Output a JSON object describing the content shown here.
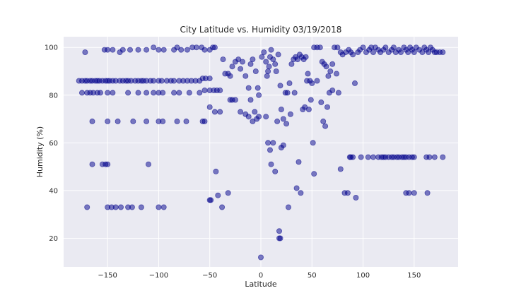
{
  "chart_data": {
    "type": "scatter",
    "title": "City Latitude vs. Humidity 03/19/2018",
    "xlabel": "Latitude",
    "ylabel": "Humidity (%)",
    "xlim": [
      -193,
      193
    ],
    "ylim": [
      8,
      104.5
    ],
    "xticks": [
      -150,
      -100,
      -50,
      0,
      50,
      100,
      150
    ],
    "yticks": [
      20,
      40,
      60,
      80,
      100
    ],
    "grid": true,
    "marker_color": "#00008b",
    "background_color": "#eaeaf2",
    "series": [
      {
        "points": [
          [
            -172,
            98
          ],
          [
            -153,
            99
          ],
          [
            -150,
            99
          ],
          [
            -145,
            99
          ],
          [
            -138,
            98
          ],
          [
            -135,
            99
          ],
          [
            -128,
            99
          ],
          [
            -120,
            99
          ],
          [
            -112,
            99
          ],
          [
            -105,
            100
          ],
          [
            -100,
            99
          ],
          [
            -95,
            99
          ],
          [
            -85,
            99
          ],
          [
            -82,
            100
          ],
          [
            -78,
            99
          ],
          [
            -72,
            99
          ],
          [
            -67,
            100
          ],
          [
            -63,
            100
          ],
          [
            -58,
            100
          ],
          [
            -55,
            99
          ],
          [
            -50,
            99
          ],
          [
            -47,
            100
          ],
          [
            -45,
            100
          ],
          [
            -178,
            86
          ],
          [
            -175,
            86
          ],
          [
            -172,
            86
          ],
          [
            -170,
            86
          ],
          [
            -167,
            86
          ],
          [
            -165,
            86
          ],
          [
            -162,
            86
          ],
          [
            -160,
            86
          ],
          [
            -158,
            86
          ],
          [
            -155,
            86
          ],
          [
            -152,
            86
          ],
          [
            -150,
            86
          ],
          [
            -148,
            86
          ],
          [
            -145,
            86
          ],
          [
            -142,
            86
          ],
          [
            -138,
            86
          ],
          [
            -135,
            86
          ],
          [
            -132,
            86
          ],
          [
            -130,
            86
          ],
          [
            -127,
            86
          ],
          [
            -123,
            86
          ],
          [
            -120,
            86
          ],
          [
            -117,
            86
          ],
          [
            -115,
            86
          ],
          [
            -112,
            86
          ],
          [
            -108,
            86
          ],
          [
            -105,
            86
          ],
          [
            -100,
            86
          ],
          [
            -97,
            86
          ],
          [
            -92,
            86
          ],
          [
            -88,
            86
          ],
          [
            -85,
            86
          ],
          [
            -80,
            86
          ],
          [
            -76,
            86
          ],
          [
            -72,
            86
          ],
          [
            -68,
            86
          ],
          [
            -64,
            86
          ],
          [
            -60,
            86
          ],
          [
            -57,
            87
          ],
          [
            -54,
            87
          ],
          [
            -50,
            87
          ],
          [
            -175,
            81
          ],
          [
            -170,
            81
          ],
          [
            -167,
            81
          ],
          [
            -164,
            81
          ],
          [
            -160,
            81
          ],
          [
            -157,
            81
          ],
          [
            -150,
            81
          ],
          [
            -145,
            81
          ],
          [
            -130,
            81
          ],
          [
            -120,
            81
          ],
          [
            -112,
            81
          ],
          [
            -105,
            81
          ],
          [
            -100,
            81
          ],
          [
            -96,
            81
          ],
          [
            -85,
            81
          ],
          [
            -80,
            81
          ],
          [
            -70,
            81
          ],
          [
            -60,
            81
          ],
          [
            -55,
            82
          ],
          [
            -50,
            82
          ],
          [
            -46,
            82
          ],
          [
            -43,
            82
          ],
          [
            -40,
            82
          ],
          [
            -165,
            69
          ],
          [
            -150,
            69
          ],
          [
            -140,
            69
          ],
          [
            -125,
            69
          ],
          [
            -112,
            69
          ],
          [
            -100,
            69
          ],
          [
            -96,
            69
          ],
          [
            -82,
            69
          ],
          [
            -73,
            69
          ],
          [
            -57,
            69
          ],
          [
            -55,
            69
          ],
          [
            -165,
            51
          ],
          [
            -155,
            51
          ],
          [
            -152,
            51
          ],
          [
            -150,
            51
          ],
          [
            -110,
            51
          ],
          [
            -170,
            33
          ],
          [
            -150,
            33
          ],
          [
            -146,
            33
          ],
          [
            -142,
            33
          ],
          [
            -137,
            33
          ],
          [
            -130,
            33
          ],
          [
            -126,
            33
          ],
          [
            -117,
            33
          ],
          [
            -100,
            33
          ],
          [
            -95,
            33
          ],
          [
            -50,
            36
          ],
          [
            -49,
            36
          ],
          [
            -42,
            38
          ],
          [
            -38,
            33
          ],
          [
            -32,
            39
          ],
          [
            -44,
            48
          ],
          [
            -50,
            75
          ],
          [
            -45,
            73
          ],
          [
            -40,
            73
          ],
          [
            -37,
            95
          ],
          [
            -35,
            89
          ],
          [
            -32,
            89
          ],
          [
            -30,
            88
          ],
          [
            -28,
            92
          ],
          [
            -25,
            94
          ],
          [
            -22,
            95
          ],
          [
            -20,
            91
          ],
          [
            -18,
            94
          ],
          [
            -15,
            88
          ],
          [
            -12,
            83
          ],
          [
            -10,
            93
          ],
          [
            -8,
            95
          ],
          [
            -5,
            90
          ],
          [
            -3,
            83
          ],
          [
            -2,
            80
          ],
          [
            -15,
            72
          ],
          [
            -12,
            71
          ],
          [
            -10,
            78
          ],
          [
            -8,
            69
          ],
          [
            -6,
            73
          ],
          [
            -4,
            70
          ],
          [
            -2,
            71
          ],
          [
            -30,
            78
          ],
          [
            -28,
            78
          ],
          [
            -25,
            78
          ],
          [
            -20,
            73
          ],
          [
            0,
            12
          ],
          [
            1,
            96
          ],
          [
            3,
            98
          ],
          [
            5,
            94
          ],
          [
            6,
            88
          ],
          [
            7,
            90
          ],
          [
            8,
            92
          ],
          [
            9,
            96
          ],
          [
            10,
            99
          ],
          [
            12,
            95
          ],
          [
            14,
            93
          ],
          [
            15,
            90
          ],
          [
            17,
            97
          ],
          [
            19,
            84
          ],
          [
            20,
            74
          ],
          [
            22,
            70
          ],
          [
            24,
            81
          ],
          [
            26,
            81
          ],
          [
            28,
            85
          ],
          [
            30,
            93
          ],
          [
            32,
            95
          ],
          [
            34,
            96
          ],
          [
            36,
            95
          ],
          [
            38,
            97
          ],
          [
            40,
            96
          ],
          [
            42,
            95
          ],
          [
            44,
            96
          ],
          [
            46,
            89
          ],
          [
            48,
            86
          ],
          [
            50,
            85
          ],
          [
            52,
            100
          ],
          [
            55,
            100
          ],
          [
            58,
            100
          ],
          [
            60,
            94
          ],
          [
            62,
            93
          ],
          [
            64,
            92
          ],
          [
            66,
            88
          ],
          [
            68,
            90
          ],
          [
            70,
            93
          ],
          [
            72,
            100
          ],
          [
            75,
            100
          ],
          [
            78,
            98
          ],
          [
            80,
            97
          ],
          [
            83,
            98
          ],
          [
            86,
            99
          ],
          [
            88,
            98
          ],
          [
            90,
            97
          ],
          [
            5,
            71
          ],
          [
            7,
            60
          ],
          [
            9,
            57
          ],
          [
            10,
            51
          ],
          [
            12,
            60
          ],
          [
            14,
            48
          ],
          [
            16,
            69
          ],
          [
            18,
            20
          ],
          [
            18,
            23
          ],
          [
            19,
            20
          ],
          [
            20,
            58
          ],
          [
            22,
            59
          ],
          [
            25,
            68
          ],
          [
            27,
            33
          ],
          [
            29,
            72
          ],
          [
            33,
            81
          ],
          [
            35,
            41
          ],
          [
            37,
            52
          ],
          [
            39,
            39
          ],
          [
            41,
            74
          ],
          [
            43,
            75
          ],
          [
            45,
            86
          ],
          [
            47,
            74
          ],
          [
            49,
            78
          ],
          [
            51,
            60
          ],
          [
            52,
            47
          ],
          [
            55,
            86
          ],
          [
            59,
            77
          ],
          [
            61,
            69
          ],
          [
            63,
            67
          ],
          [
            65,
            75
          ],
          [
            67,
            81
          ],
          [
            70,
            82
          ],
          [
            74,
            89
          ],
          [
            76,
            81
          ],
          [
            78,
            49
          ],
          [
            82,
            39
          ],
          [
            85,
            39
          ],
          [
            87,
            54
          ],
          [
            88,
            54
          ],
          [
            90,
            54
          ],
          [
            92,
            85
          ],
          [
            93,
            37
          ],
          [
            95,
            98
          ],
          [
            97,
            99
          ],
          [
            100,
            100
          ],
          [
            103,
            98
          ],
          [
            106,
            99
          ],
          [
            108,
            100
          ],
          [
            110,
            98
          ],
          [
            112,
            100
          ],
          [
            115,
            99
          ],
          [
            117,
            98
          ],
          [
            120,
            99
          ],
          [
            122,
            100
          ],
          [
            125,
            98
          ],
          [
            128,
            99
          ],
          [
            130,
            100
          ],
          [
            132,
            98
          ],
          [
            135,
            99
          ],
          [
            137,
            98
          ],
          [
            140,
            100
          ],
          [
            142,
            99
          ],
          [
            144,
            98
          ],
          [
            146,
            100
          ],
          [
            148,
            99
          ],
          [
            150,
            98
          ],
          [
            152,
            100
          ],
          [
            155,
            99
          ],
          [
            158,
            98
          ],
          [
            160,
            100
          ],
          [
            162,
            99
          ],
          [
            164,
            98
          ],
          [
            166,
            100
          ],
          [
            168,
            99
          ],
          [
            170,
            98
          ],
          [
            172,
            98
          ],
          [
            175,
            98
          ],
          [
            178,
            98
          ],
          [
            98,
            54
          ],
          [
            105,
            54
          ],
          [
            110,
            54
          ],
          [
            115,
            54
          ],
          [
            118,
            54
          ],
          [
            120,
            54
          ],
          [
            122,
            54
          ],
          [
            125,
            54
          ],
          [
            128,
            54
          ],
          [
            130,
            54
          ],
          [
            133,
            54
          ],
          [
            135,
            54
          ],
          [
            138,
            54
          ],
          [
            140,
            54
          ],
          [
            142,
            54
          ],
          [
            145,
            54
          ],
          [
            148,
            54
          ],
          [
            150,
            54
          ],
          [
            162,
            54
          ],
          [
            165,
            54
          ],
          [
            170,
            54
          ],
          [
            178,
            54
          ],
          [
            142,
            39
          ],
          [
            145,
            39
          ],
          [
            150,
            39
          ],
          [
            163,
            39
          ]
        ]
      }
    ]
  }
}
